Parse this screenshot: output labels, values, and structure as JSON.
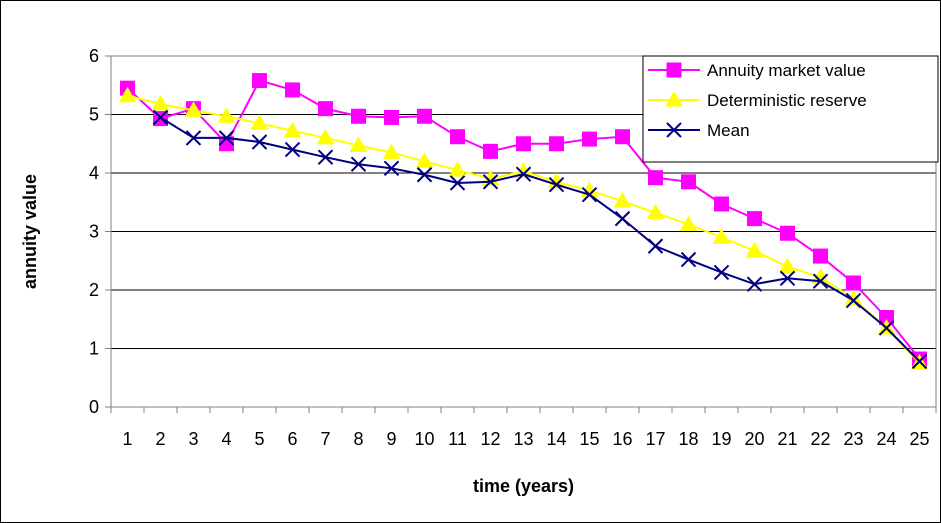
{
  "chart_data": {
    "type": "line",
    "title": "",
    "xlabel": "time (years)",
    "ylabel": "annuity value",
    "categories": [
      "1",
      "2",
      "3",
      "4",
      "5",
      "6",
      "7",
      "8",
      "9",
      "10",
      "11",
      "12",
      "13",
      "14",
      "15",
      "16",
      "17",
      "18",
      "19",
      "20",
      "21",
      "22",
      "23",
      "24",
      "25"
    ],
    "ylim": [
      0,
      6
    ],
    "yticks": [
      "0",
      "1",
      "2",
      "3",
      "4",
      "5",
      "6"
    ],
    "grid": "horizontal",
    "legend_position": "top-right",
    "series": [
      {
        "name": "Annuity market value",
        "color": "#ff00ff",
        "marker": "square",
        "values": [
          5.45,
          4.93,
          5.1,
          4.5,
          5.58,
          5.42,
          5.1,
          4.97,
          4.95,
          4.97,
          4.62,
          4.37,
          4.5,
          4.5,
          4.58,
          4.62,
          3.92,
          3.85,
          3.47,
          3.22,
          2.97,
          2.58,
          2.12,
          1.53,
          0.82
        ]
      },
      {
        "name": "Deterministic reserve",
        "color": "#ffff00",
        "marker": "triangle",
        "values": [
          5.32,
          5.18,
          5.07,
          4.97,
          4.85,
          4.72,
          4.6,
          4.47,
          4.35,
          4.2,
          4.05,
          3.9,
          4.03,
          3.85,
          3.7,
          3.52,
          3.32,
          3.12,
          2.9,
          2.67,
          2.4,
          2.22,
          1.85,
          1.35,
          0.75
        ]
      },
      {
        "name": "Mean",
        "color": "#000080",
        "marker": "x",
        "values": [
          null,
          4.95,
          4.6,
          4.6,
          4.53,
          4.4,
          4.27,
          4.15,
          4.08,
          3.97,
          3.83,
          3.85,
          3.98,
          3.8,
          3.63,
          3.22,
          2.75,
          2.52,
          2.3,
          2.1,
          2.2,
          2.15,
          1.82,
          1.35,
          0.78
        ]
      }
    ]
  }
}
